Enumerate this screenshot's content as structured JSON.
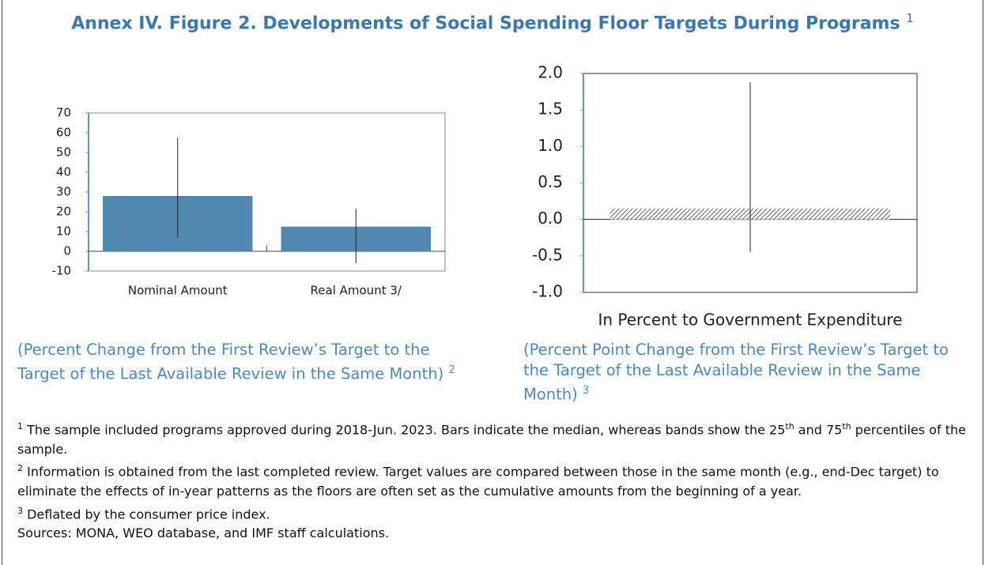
{
  "title": "Annex IV. Figure 2. Developments of Social Spending Floor Targets During Programs",
  "title_note": "1",
  "chart_data": [
    {
      "type": "bar",
      "categories": [
        "Nominal Amount",
        "Real Amount 3/"
      ],
      "values": [
        28,
        12.5
      ],
      "low": [
        7,
        -6
      ],
      "high": [
        57.5,
        21.5
      ],
      "color": "#4f89b0",
      "ylim": [
        -10,
        70
      ],
      "yticks": [
        -10,
        0,
        10,
        20,
        30,
        40,
        50,
        60,
        70
      ]
    },
    {
      "type": "bar",
      "categories": [
        null
      ],
      "values": [
        0.15
      ],
      "low": [
        -0.45
      ],
      "high": [
        1.88
      ],
      "color": "#7f7f7f",
      "hatch": true,
      "xlabel": "In Percent to Government Expenditure",
      "ylim": [
        -1,
        2
      ],
      "yticks": [
        {
          "value": -1,
          "label": "-1.0"
        },
        -0.5,
        {
          "value": 0,
          "label": "0.0"
        },
        0.5,
        {
          "value": 1,
          "label": "1.0"
        },
        1.5,
        {
          "value": 2,
          "label": "2.0"
        }
      ]
    }
  ],
  "captions": [
    {
      "text": "(Percent Change from the First Review’s Target to the Target of the Last Available Review in the Same Month)",
      "note": "2"
    },
    {
      "text": "(Percent Point Change from the First Review’s Target to the Target of the Last Available Review in the Same Month)",
      "note": "3"
    }
  ],
  "notes": [
    {
      "marker": "1",
      "parts": [
        "The sample included programs approved during 2018-Jun. 2023. Bars indicate the median, whereas bands show the 25",
        "th",
        " and 75",
        "th",
        " percentiles of the sample."
      ]
    },
    {
      "marker": "2",
      "parts": [
        "Information is obtained from the last completed review. Target values are compared between those in the same month (e.g., end-Dec target) to eliminate the effects of in-year patterns as the floors are often set as the cumulative amounts from the beginning of a year."
      ]
    },
    {
      "marker": "3",
      "parts": [
        "Deflated by the consumer price index."
      ]
    }
  ],
  "sources": "Sources: MONA, WEO database, and IMF staff calculations."
}
